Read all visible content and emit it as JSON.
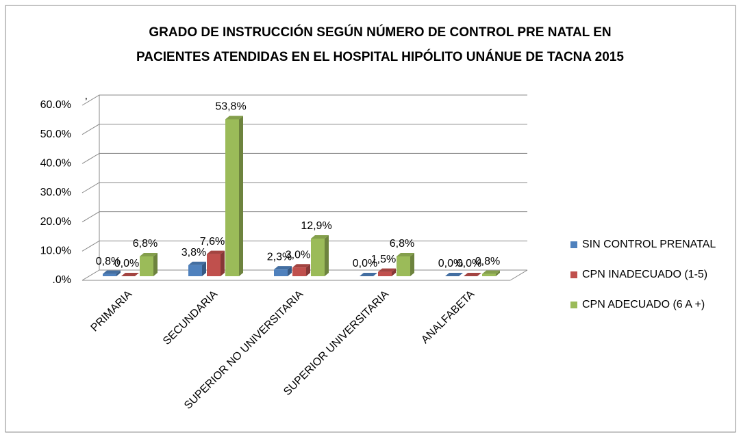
{
  "chart_data": {
    "type": "bar3d",
    "title": [
      "GRADO DE INSTRUCCIÓN SEGÚN NÚMERO DE CONTROL PRE NATAL  EN",
      "PACIENTES ATENDIDAS EN EL HOSPITAL HIPÓLITO UNÁNUE DE TACNA 2015"
    ],
    "annotation": "’",
    "categories": [
      "PRIMARIA",
      "SECUNDARIA",
      "SUPERIOR NO UNIVERSITARIA",
      "SUPERIOR UNIVERSITARIA",
      "ANALFABETA"
    ],
    "series": [
      {
        "name": "SIN CONTROL PRENATAL",
        "color": "#4f81bd",
        "values": [
          0.8,
          3.8,
          2.3,
          0.0,
          0.0
        ],
        "value_labels": [
          "0,8%",
          "3,8%",
          "2,3%",
          "0,0%",
          "0,0%"
        ]
      },
      {
        "name": "CPN INADECUADO (1-5)",
        "color": "#c0504d",
        "values": [
          0.0,
          7.6,
          3.0,
          1.5,
          0.0
        ],
        "value_labels": [
          "0,0%",
          "7,6%",
          "3,0%",
          "1,5%",
          "0,0%"
        ]
      },
      {
        "name": "CPN ADECUADO (6 A +)",
        "color": "#9bbb59",
        "values": [
          6.8,
          53.8,
          12.9,
          6.8,
          0.8
        ],
        "value_labels": [
          "6,8%",
          "53,8%",
          "12,9%",
          "6,8%",
          "0,8%"
        ]
      }
    ],
    "ylim": [
      0,
      60
    ],
    "yticks": [
      {
        "value": 0,
        "label": ".0%"
      },
      {
        "value": 10,
        "label": "10.0%"
      },
      {
        "value": 20,
        "label": "20.0%"
      },
      {
        "value": 30,
        "label": "30.0%"
      },
      {
        "value": 40,
        "label": "40.0%"
      },
      {
        "value": 50,
        "label": "50.0%"
      },
      {
        "value": 60,
        "label": "60.0%"
      }
    ],
    "grid": true,
    "legend": "right"
  }
}
